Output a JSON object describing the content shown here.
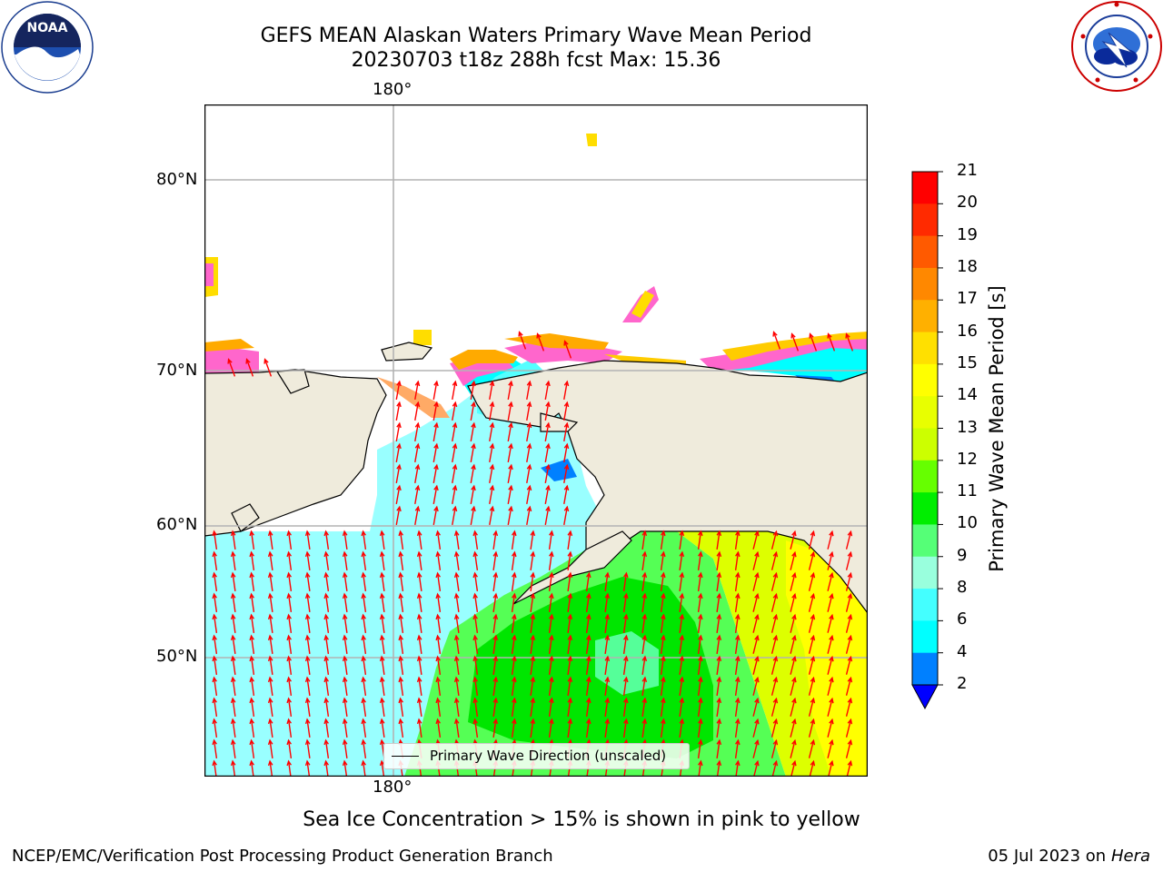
{
  "title": {
    "line1": "GEFS MEAN Alaskan Waters Primary Wave Mean Period",
    "line2": "20230703 t18z 288h fcst   Max: 15.36"
  },
  "logos": {
    "left": "noaa-logo",
    "right": "national-weather-service-logo"
  },
  "map": {
    "lon_label_top": "180°",
    "lon_label_bottom": "180°",
    "lat_labels": [
      "80°N",
      "70°N",
      "60°N",
      "50°N"
    ],
    "land_color": "#efebdc",
    "arrow_color": "#ff0000",
    "legend_label": "Primary Wave Direction (unscaled)"
  },
  "colorbar": {
    "label": "Primary Wave Mean Period [s]",
    "ticks": [
      "21",
      "20",
      "19",
      "18",
      "17",
      "16",
      "15",
      "14",
      "13",
      "12",
      "11",
      "10",
      "9",
      "8",
      "6",
      "4",
      "2"
    ],
    "colors_top_to_bottom": [
      "#ff0000",
      "#ff2a00",
      "#ff5500",
      "#ff8000",
      "#ffaa00",
      "#ffd400",
      "#ffff00",
      "#eaff00",
      "#ccff00",
      "#99ff00",
      "#55ff00",
      "#00e600",
      "#55ff88",
      "#99ffdd",
      "#55ffff",
      "#00ffff",
      "#00eeff",
      "#0080ff",
      "#0000ff"
    ]
  },
  "ice_note": "Sea Ice Concentration > 15% is shown in pink to yellow",
  "footer": {
    "left": "NCEP/EMC/Verification Post Processing Product Generation Branch",
    "date": "05 Jul 2023 on ",
    "machine": "Hera"
  }
}
